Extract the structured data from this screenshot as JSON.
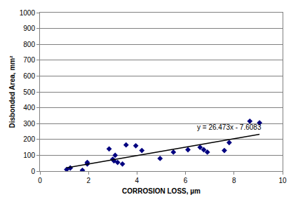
{
  "chart_data": {
    "type": "scatter",
    "x_label": "CORROSION LOSS, µm",
    "y_label": "Disbonded Area, mm²",
    "annotations": [
      "y = 26.473x - 7.6083"
    ],
    "series": [
      {
        "type": "scatter",
        "marker": "diamond",
        "color": "#000080",
        "x": [
          1.1,
          1.25,
          1.75,
          1.95,
          1.95,
          2.85,
          3.0,
          3.05,
          3.1,
          3.2,
          3.4,
          3.55,
          3.95,
          4.2,
          4.95,
          5.5,
          6.1,
          6.6,
          6.75,
          6.9,
          7.6,
          7.8,
          8.65,
          9.05
        ],
        "values": [
          10,
          20,
          5,
          45,
          55,
          140,
          75,
          65,
          100,
          55,
          45,
          165,
          160,
          130,
          80,
          120,
          135,
          150,
          135,
          120,
          130,
          180,
          315,
          305
        ]
      },
      {
        "type": "line",
        "line_style": "solid",
        "color": "#000000",
        "x": [
          1.1,
          9.05
        ],
        "values": [
          21.5,
          232
        ]
      }
    ],
    "xlim": [
      0,
      10
    ],
    "xticks": [
      0,
      2,
      4,
      6,
      8,
      10
    ],
    "ylim": [
      0,
      1000
    ],
    "yticks": [
      0,
      100,
      200,
      300,
      400,
      500,
      600,
      700,
      800,
      900,
      1000
    ],
    "grid": true
  }
}
